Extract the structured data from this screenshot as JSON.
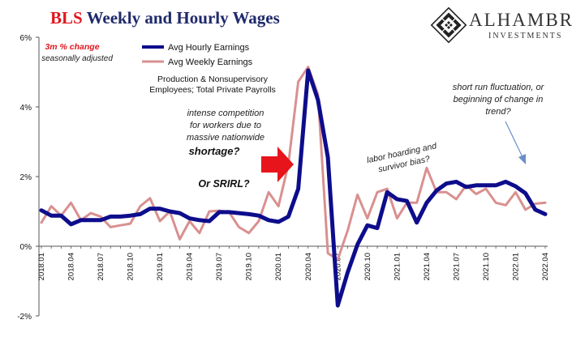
{
  "header": {
    "title_lead": "BLS",
    "title_rest": " Weekly and Hourly Wages"
  },
  "logo": {
    "name": "ALHAMBRA",
    "sub": "INVESTMENTS"
  },
  "notes": {
    "change_label": "3m % change",
    "seasonal": "seasonally adjusted",
    "scope_line1": "Production & Nonsupervisory",
    "scope_line2": "Employees; Total Private Payrolls",
    "competition_line1": "intense competition",
    "competition_line2": "for workers due to",
    "competition_line3": "massive nationwide",
    "competition_line4": "shortage?",
    "srirl": "Or SRIRL?",
    "labor_line1": "labor hoarding and",
    "labor_line2": "survivor bias?",
    "fluct_line1": "short run fluctuation, or",
    "fluct_line2": "beginning of change in",
    "fluct_line3": "trend?"
  },
  "colors": {
    "hourly": "#0d0d8c",
    "weekly": "#d99090",
    "title_red": "#e0171f",
    "title_navy": "#1f2a6b",
    "arrow_red": "#e8141b",
    "arrow_blue": "#6b8fc9"
  },
  "chart_data": {
    "type": "line",
    "title": "BLS Weekly and Hourly Wages",
    "xlabel": "",
    "ylabel": "",
    "ylim": [
      -2,
      6
    ],
    "y_ticks": [
      -2,
      0,
      2,
      4,
      6
    ],
    "y_tick_labels": [
      "-2%",
      "0%",
      "2%",
      "4%",
      "6%"
    ],
    "x_tick_labels": [
      "2018.01",
      "2018.04",
      "2018.07",
      "2018.10",
      "2019.01",
      "2019.04",
      "2019.07",
      "2019.10",
      "2020.01",
      "2020.04",
      "2020.07",
      "2020.10",
      "2021.01",
      "2021.04",
      "2021.07",
      "2021.10",
      "2022.01",
      "2022.04"
    ],
    "grid": false,
    "legend_position": "top-left",
    "x": [
      "2018.01",
      "2018.02",
      "2018.03",
      "2018.04",
      "2018.05",
      "2018.06",
      "2018.07",
      "2018.08",
      "2018.09",
      "2018.10",
      "2018.11",
      "2018.12",
      "2019.01",
      "2019.02",
      "2019.03",
      "2019.04",
      "2019.05",
      "2019.06",
      "2019.07",
      "2019.08",
      "2019.09",
      "2019.10",
      "2019.11",
      "2019.12",
      "2020.01",
      "2020.02",
      "2020.03",
      "2020.04",
      "2020.05",
      "2020.06",
      "2020.07",
      "2020.08",
      "2020.09",
      "2020.10",
      "2020.11",
      "2020.12",
      "2021.01",
      "2021.02",
      "2021.03",
      "2021.04",
      "2021.05",
      "2021.06",
      "2021.07",
      "2021.08",
      "2021.09",
      "2021.10",
      "2021.11",
      "2021.12",
      "2022.01",
      "2022.02",
      "2022.03",
      "2022.04"
    ],
    "series": [
      {
        "name": "Avg Hourly Earnings",
        "values": [
          1.03,
          0.88,
          0.88,
          0.63,
          0.75,
          0.75,
          0.75,
          0.85,
          0.85,
          0.88,
          0.92,
          1.08,
          1.08,
          1.0,
          0.95,
          0.8,
          0.75,
          0.72,
          0.98,
          0.98,
          0.95,
          0.92,
          0.88,
          0.75,
          0.7,
          0.85,
          1.65,
          5.05,
          4.2,
          2.55,
          -1.7,
          -0.75,
          0.05,
          0.6,
          0.52,
          1.55,
          1.35,
          1.3,
          0.68,
          1.25,
          1.6,
          1.8,
          1.85,
          1.7,
          1.75,
          1.75,
          1.75,
          1.85,
          1.72,
          1.52,
          1.05,
          0.92
        ]
      },
      {
        "name": "Avg Weekly Earnings",
        "values": [
          0.68,
          1.15,
          0.88,
          1.25,
          0.75,
          0.95,
          0.85,
          0.55,
          0.6,
          0.65,
          1.15,
          1.38,
          0.72,
          1.0,
          0.2,
          0.72,
          0.38,
          1.0,
          1.02,
          0.98,
          0.55,
          0.38,
          0.72,
          1.55,
          1.15,
          2.35,
          4.72,
          5.15,
          4.35,
          -0.2,
          -0.38,
          0.45,
          1.48,
          0.8,
          1.55,
          1.65,
          0.8,
          1.25,
          1.25,
          2.25,
          1.55,
          1.55,
          1.35,
          1.75,
          1.5,
          1.65,
          1.25,
          1.18,
          1.55,
          1.05,
          1.22,
          1.25
        ]
      }
    ]
  }
}
